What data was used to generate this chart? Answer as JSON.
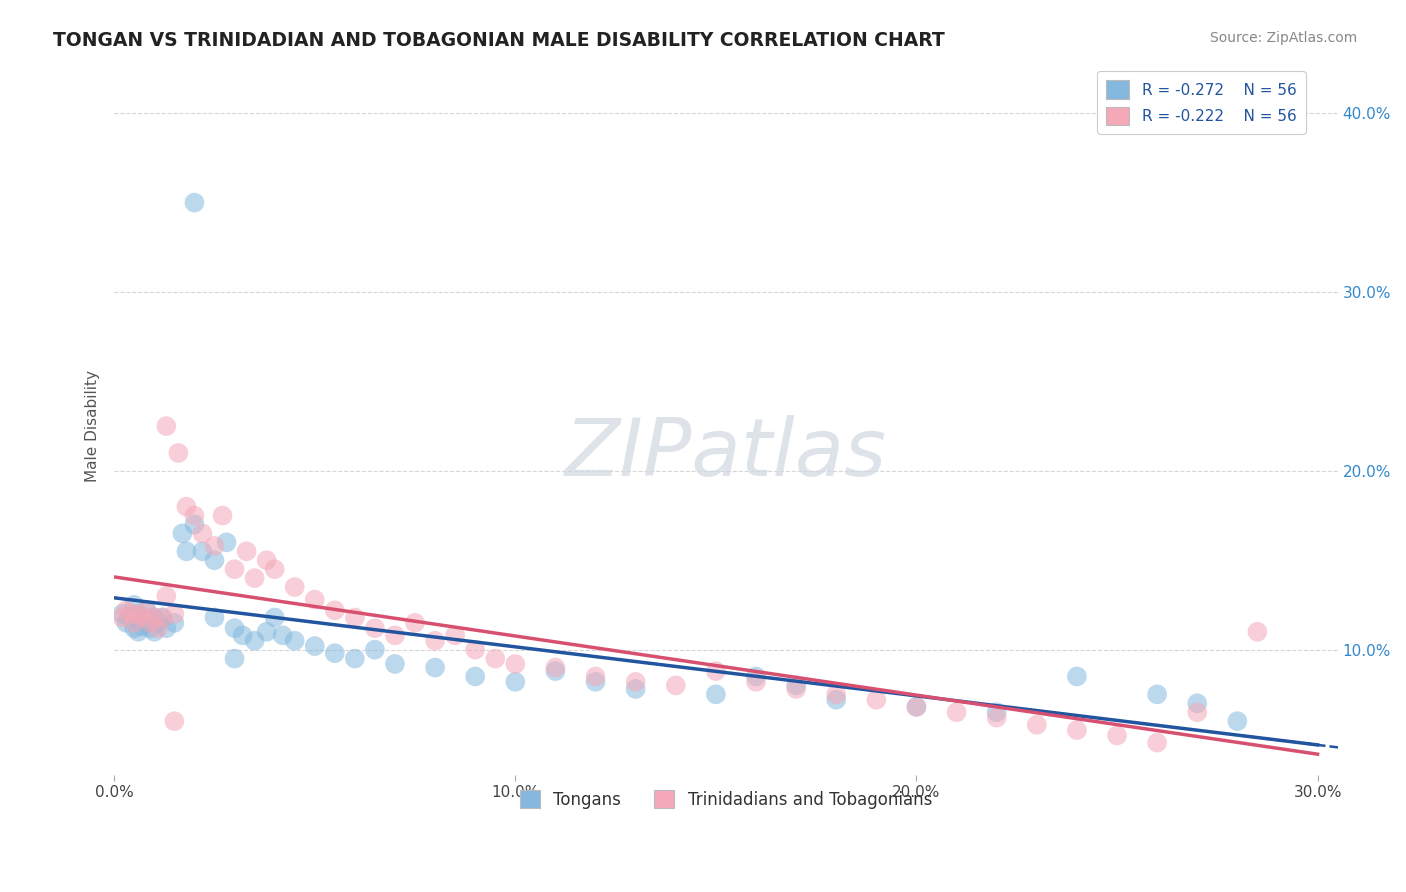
{
  "title": "TONGAN VS TRINIDADIAN AND TOBAGONIAN MALE DISABILITY CORRELATION CHART",
  "source_text": "Source: ZipAtlas.com",
  "ylabel": "Male Disability",
  "watermark": "ZIPatlas",
  "legend_entries": [
    {
      "label": "R = -0.272    N = 56",
      "color": "#a8c8e8"
    },
    {
      "label": "R = -0.222    N = 56",
      "color": "#f4a8b8"
    }
  ],
  "legend_labels": [
    "Tongans",
    "Trinidadians and Tobagonians"
  ],
  "blue_color": "#85b8de",
  "pink_color": "#f4a8b8",
  "blue_line_color": "#2255a0",
  "pink_line_color": "#d85070",
  "xmin": 0.0,
  "xmax": 0.3,
  "ymin": 0.03,
  "ymax": 0.42,
  "yticks": [
    0.1,
    0.2,
    0.3,
    0.4
  ],
  "ytick_labels": [
    "10.0%",
    "20.0%",
    "30.0%",
    "40.0%"
  ],
  "xticks": [
    0.0,
    0.1,
    0.2,
    0.3
  ],
  "xtick_labels": [
    "0.0%",
    "10.0%",
    "20.0%",
    "30.0%"
  ],
  "blue_x": [
    0.002,
    0.003,
    0.004,
    0.005,
    0.005,
    0.006,
    0.006,
    0.007,
    0.007,
    0.008,
    0.008,
    0.009,
    0.009,
    0.01,
    0.01,
    0.011,
    0.012,
    0.013,
    0.015,
    0.017,
    0.018,
    0.02,
    0.022,
    0.025,
    0.028,
    0.03,
    0.032,
    0.035,
    0.038,
    0.04,
    0.042,
    0.045,
    0.05,
    0.055,
    0.06,
    0.065,
    0.07,
    0.08,
    0.09,
    0.1,
    0.11,
    0.12,
    0.13,
    0.15,
    0.16,
    0.17,
    0.18,
    0.2,
    0.22,
    0.24,
    0.26,
    0.27,
    0.28,
    0.02,
    0.025,
    0.03
  ],
  "blue_y": [
    0.12,
    0.115,
    0.118,
    0.112,
    0.125,
    0.11,
    0.12,
    0.118,
    0.113,
    0.115,
    0.122,
    0.116,
    0.112,
    0.118,
    0.11,
    0.115,
    0.118,
    0.112,
    0.115,
    0.165,
    0.155,
    0.17,
    0.155,
    0.15,
    0.16,
    0.112,
    0.108,
    0.105,
    0.11,
    0.118,
    0.108,
    0.105,
    0.102,
    0.098,
    0.095,
    0.1,
    0.092,
    0.09,
    0.085,
    0.082,
    0.088,
    0.082,
    0.078,
    0.075,
    0.085,
    0.08,
    0.072,
    0.068,
    0.065,
    0.085,
    0.075,
    0.07,
    0.06,
    0.35,
    0.118,
    0.095
  ],
  "pink_x": [
    0.002,
    0.003,
    0.004,
    0.005,
    0.006,
    0.007,
    0.008,
    0.009,
    0.01,
    0.011,
    0.012,
    0.013,
    0.015,
    0.016,
    0.018,
    0.02,
    0.022,
    0.025,
    0.027,
    0.03,
    0.033,
    0.035,
    0.038,
    0.04,
    0.045,
    0.05,
    0.055,
    0.06,
    0.065,
    0.07,
    0.075,
    0.08,
    0.085,
    0.09,
    0.095,
    0.1,
    0.11,
    0.12,
    0.13,
    0.14,
    0.15,
    0.16,
    0.17,
    0.18,
    0.19,
    0.2,
    0.21,
    0.22,
    0.23,
    0.24,
    0.25,
    0.26,
    0.27,
    0.285,
    0.013,
    0.015
  ],
  "pink_y": [
    0.118,
    0.122,
    0.12,
    0.115,
    0.12,
    0.118,
    0.122,
    0.115,
    0.118,
    0.112,
    0.118,
    0.225,
    0.12,
    0.21,
    0.18,
    0.175,
    0.165,
    0.158,
    0.175,
    0.145,
    0.155,
    0.14,
    0.15,
    0.145,
    0.135,
    0.128,
    0.122,
    0.118,
    0.112,
    0.108,
    0.115,
    0.105,
    0.108,
    0.1,
    0.095,
    0.092,
    0.09,
    0.085,
    0.082,
    0.08,
    0.088,
    0.082,
    0.078,
    0.075,
    0.072,
    0.068,
    0.065,
    0.062,
    0.058,
    0.055,
    0.052,
    0.048,
    0.065,
    0.11,
    0.13,
    0.06
  ]
}
